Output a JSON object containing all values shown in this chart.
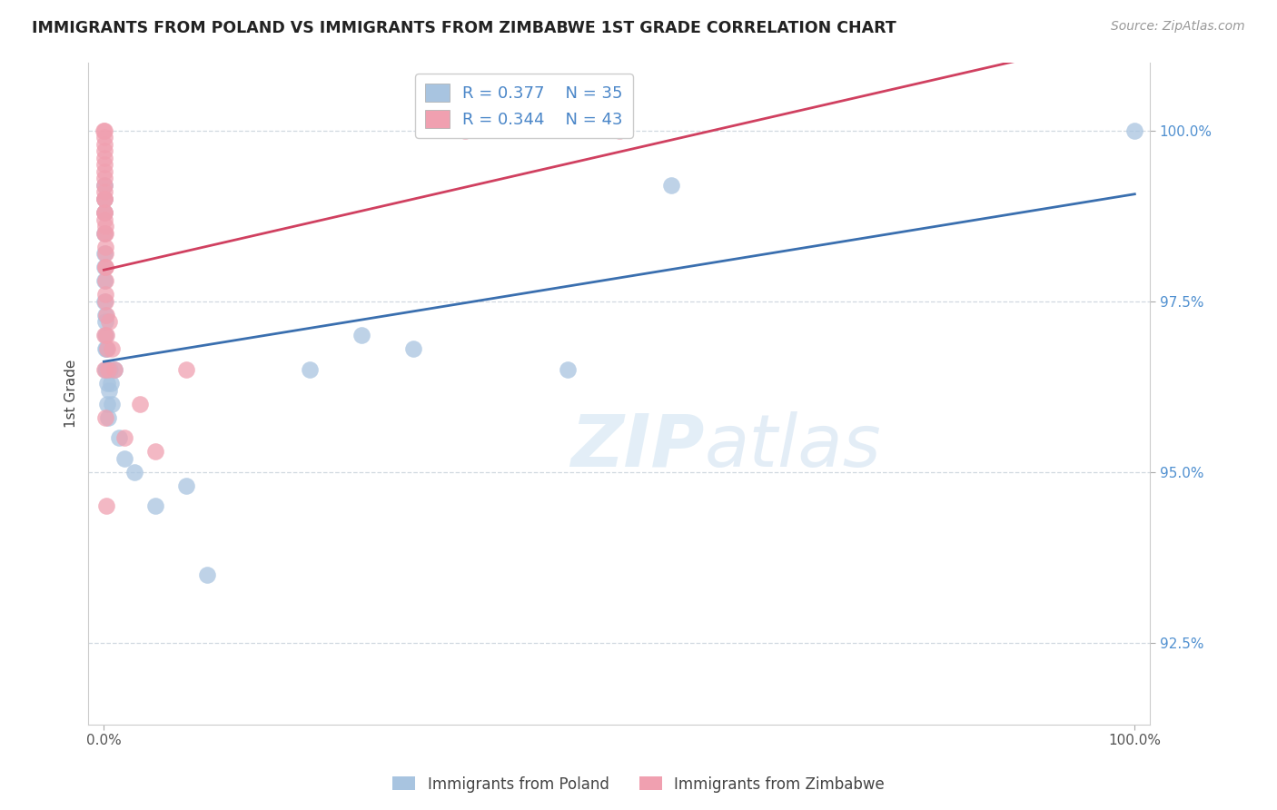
{
  "title": "IMMIGRANTS FROM POLAND VS IMMIGRANTS FROM ZIMBABWE 1ST GRADE CORRELATION CHART",
  "source": "Source: ZipAtlas.com",
  "ylabel": "1st Grade",
  "legend_label1": "Immigrants from Poland",
  "legend_label2": "Immigrants from Zimbabwe",
  "R1": 0.377,
  "N1": 35,
  "R2": 0.344,
  "N2": 43,
  "color_poland": "#a8c4e0",
  "color_zimbabwe": "#f0a0b0",
  "line_color_poland": "#3a6faf",
  "line_color_zimbabwe": "#d04060",
  "watermark_color": "#ddeeff",
  "grid_color": "#d0d8e0",
  "tick_color_y": "#5090d0",
  "tick_color_x": "#555555",
  "poland_x": [
    0.02,
    0.03,
    0.04,
    0.05,
    0.06,
    0.07,
    0.08,
    0.09,
    0.1,
    0.12,
    0.14,
    0.16,
    0.18,
    0.2,
    0.25,
    0.3,
    0.35,
    0.4,
    0.5,
    0.6,
    0.7,
    0.8,
    1.0,
    1.5,
    2.0,
    3.0,
    5.0,
    8.0,
    10.0,
    20.0,
    25.0,
    30.0,
    45.0,
    55.0,
    100.0
  ],
  "poland_y": [
    99.2,
    98.8,
    99.0,
    98.5,
    97.8,
    98.2,
    97.5,
    98.0,
    97.3,
    97.0,
    97.2,
    96.8,
    96.5,
    96.8,
    96.5,
    96.3,
    96.0,
    95.8,
    96.2,
    96.5,
    96.3,
    96.0,
    96.5,
    95.5,
    95.2,
    95.0,
    94.5,
    94.8,
    93.5,
    96.5,
    97.0,
    96.8,
    96.5,
    99.2,
    100.0
  ],
  "zimbabwe_x": [
    0.01,
    0.02,
    0.02,
    0.03,
    0.03,
    0.04,
    0.04,
    0.05,
    0.05,
    0.06,
    0.06,
    0.07,
    0.07,
    0.08,
    0.08,
    0.09,
    0.09,
    0.1,
    0.1,
    0.11,
    0.12,
    0.13,
    0.14,
    0.15,
    0.16,
    0.18,
    0.2,
    0.25,
    0.3,
    0.4,
    0.5,
    0.8,
    1.0,
    2.0,
    3.5,
    5.0,
    8.0,
    35.0,
    50.0,
    0.06,
    0.07,
    0.12,
    0.25
  ],
  "zimbabwe_y": [
    100.0,
    100.0,
    99.8,
    99.7,
    99.9,
    99.6,
    99.4,
    99.5,
    99.2,
    99.3,
    99.0,
    99.1,
    98.8,
    99.0,
    98.7,
    98.8,
    98.5,
    98.6,
    98.3,
    98.5,
    98.2,
    98.0,
    97.8,
    98.0,
    97.6,
    97.5,
    97.3,
    97.0,
    96.8,
    96.5,
    97.2,
    96.8,
    96.5,
    95.5,
    96.0,
    95.3,
    96.5,
    100.0,
    100.0,
    97.0,
    96.5,
    95.8,
    94.5
  ]
}
